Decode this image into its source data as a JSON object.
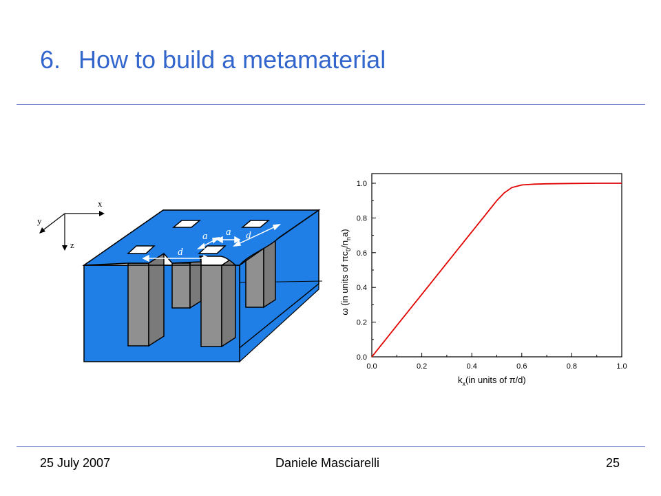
{
  "slide": {
    "title_number": "6.",
    "title_text": "How to build a metamaterial",
    "footer_date": "25 July 2007",
    "footer_author": "Daniele Masciarelli",
    "footer_page": "25"
  },
  "diagram": {
    "coord_x": "x",
    "coord_y": "y",
    "coord_z": "z",
    "label_a1": "a",
    "label_a2": "a",
    "label_d1": "d",
    "label_d2": "d",
    "slab_color": "#1f7fe6",
    "rod_color": "#909090"
  },
  "chart_data": {
    "type": "line",
    "xlabel": "k",
    "xlabel_sub": "x",
    "xlabel_rest": "(in units of π/d)",
    "ylabel": "ω (in units of πc0/nna)",
    "ylabel_parts": {
      "pre": "ω (in units of π",
      "c": "c",
      "c_sub": "0",
      "slash": "/n",
      "n_sub": "n",
      "post": "a)"
    },
    "xlim": [
      0.0,
      1.0
    ],
    "ylim": [
      0.0,
      1.0
    ],
    "xticks": [
      "0.0",
      "0.2",
      "0.4",
      "0.6",
      "0.8",
      "1.0"
    ],
    "yticks": [
      "0.0",
      "0.2",
      "0.4",
      "0.6",
      "0.8",
      "1.0"
    ],
    "grid": false,
    "line_color": "#e00000",
    "series": [
      {
        "x": [
          0.0,
          0.1,
          0.2,
          0.3,
          0.4,
          0.45,
          0.5,
          0.53,
          0.56,
          0.6,
          0.65,
          0.7,
          0.8,
          0.9,
          1.0
        ],
        "y": [
          0.0,
          0.18,
          0.36,
          0.54,
          0.72,
          0.81,
          0.9,
          0.945,
          0.975,
          0.99,
          0.995,
          0.997,
          0.999,
          1.0,
          1.0
        ]
      }
    ]
  }
}
